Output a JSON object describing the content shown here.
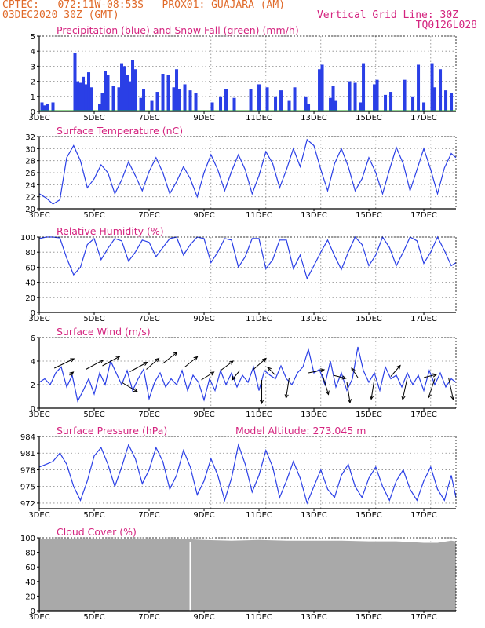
{
  "header": {
    "line1": "CPTEC:   072:11W-08:53S   PROX01: GUAJARA (AM)",
    "line2": "03DEC2020 30Z (GMT)",
    "grid_note": "Vertical Grid Line: 30Z",
    "code": "TQ0126L028"
  },
  "colors": {
    "header": "#e06a2a",
    "title": "#d4247f",
    "line": "#2a3fe6",
    "snow": "#1aa11a",
    "cloud": "#a9a9a9",
    "grid": "#888888"
  },
  "x_axis": {
    "day_start": 3,
    "day_end": 18.17,
    "tick_labels": [
      "3DEC",
      "5DEC",
      "7DEC",
      "9DEC",
      "11DEC",
      "13DEC",
      "15DEC",
      "17DEC"
    ],
    "tick_days": [
      3,
      5,
      7,
      9,
      11,
      13,
      15,
      17
    ],
    "vertical_grid_days": [
      9.25,
      11.25,
      13.25,
      15.25,
      17.25
    ]
  },
  "chart_data": [
    {
      "type": "bar",
      "title": "Precipitation (blue) and Snow Fall (green) (mm/h)",
      "ylim": [
        0,
        5
      ],
      "yticks": [
        0,
        1,
        2,
        3,
        4,
        5
      ],
      "series": [
        {
          "name": "Precipitation",
          "units": "mm/h",
          "x_days": [
            3.1,
            3.2,
            3.3,
            3.5,
            4.3,
            4.4,
            4.5,
            4.6,
            4.7,
            4.8,
            4.9,
            5.2,
            5.3,
            5.4,
            5.5,
            5.7,
            5.9,
            6.0,
            6.1,
            6.2,
            6.3,
            6.4,
            6.5,
            6.7,
            6.8,
            7.1,
            7.3,
            7.5,
            7.7,
            7.9,
            8.0,
            8.1,
            8.3,
            8.5,
            8.7,
            9.3,
            9.6,
            9.8,
            10.1,
            10.7,
            11.0,
            11.3,
            11.6,
            11.8,
            12.1,
            12.3,
            12.7,
            12.8,
            13.2,
            13.3,
            13.6,
            13.7,
            13.8,
            14.3,
            14.5,
            14.7,
            14.8,
            15.2,
            15.3,
            15.6,
            15.8,
            16.3,
            16.6,
            16.8,
            17.0,
            17.3,
            17.4,
            17.6,
            17.8,
            18.0
          ],
          "values": [
            0.6,
            0.4,
            0.5,
            0.6,
            3.9,
            2.0,
            1.9,
            2.3,
            1.8,
            2.6,
            1.6,
            0.5,
            1.2,
            2.7,
            2.4,
            1.7,
            1.6,
            3.2,
            3.0,
            2.4,
            2.0,
            3.4,
            2.8,
            0.9,
            1.5,
            0.7,
            1.3,
            2.5,
            2.4,
            1.6,
            2.8,
            1.5,
            1.8,
            1.4,
            1.2,
            0.6,
            1.0,
            1.5,
            0.9,
            1.5,
            1.8,
            1.6,
            1.0,
            1.4,
            0.7,
            1.6,
            1.0,
            0.5,
            2.8,
            3.1,
            0.9,
            1.7,
            0.7,
            2.0,
            1.9,
            0.6,
            3.2,
            1.8,
            2.1,
            1.1,
            1.3,
            2.1,
            1.0,
            3.1,
            0.6,
            3.2,
            1.6,
            2.8,
            1.4,
            1.2
          ]
        },
        {
          "name": "Snow Fall",
          "units": "mm/h",
          "x_days": [
            3.0,
            18.17
          ],
          "values": [
            0,
            0
          ]
        }
      ]
    },
    {
      "type": "line",
      "title": "Surface Temperature (nC)",
      "ylim": [
        20,
        32
      ],
      "yticks": [
        20,
        22,
        24,
        26,
        28,
        30,
        32
      ],
      "x_days": [
        3.0,
        3.25,
        3.5,
        3.75,
        4.0,
        4.25,
        4.5,
        4.75,
        5.0,
        5.25,
        5.5,
        5.75,
        6.0,
        6.25,
        6.5,
        6.75,
        7.0,
        7.25,
        7.5,
        7.75,
        8.0,
        8.25,
        8.5,
        8.75,
        9.0,
        9.25,
        9.5,
        9.75,
        10.0,
        10.25,
        10.5,
        10.75,
        11.0,
        11.25,
        11.5,
        11.75,
        12.0,
        12.25,
        12.5,
        12.75,
        13.0,
        13.25,
        13.5,
        13.75,
        14.0,
        14.25,
        14.5,
        14.75,
        15.0,
        15.25,
        15.5,
        15.75,
        16.0,
        16.25,
        16.5,
        16.75,
        17.0,
        17.25,
        17.5,
        17.75,
        18.0,
        18.17
      ],
      "values": [
        22.5,
        21.8,
        20.8,
        21.5,
        28.5,
        30.5,
        28.0,
        23.5,
        25.0,
        27.3,
        26.0,
        22.5,
        24.8,
        27.8,
        25.5,
        23.0,
        26.2,
        28.5,
        26.0,
        22.5,
        24.5,
        27.0,
        25.0,
        22.0,
        26.0,
        29.0,
        26.5,
        23.0,
        26.2,
        29.0,
        26.5,
        22.5,
        25.5,
        29.5,
        27.5,
        23.5,
        26.5,
        30.0,
        27.0,
        31.5,
        30.5,
        26.5,
        23.0,
        27.5,
        30.0,
        27.0,
        23.0,
        25.0,
        28.5,
        26.0,
        22.5,
        26.5,
        30.2,
        27.5,
        23.0,
        26.5,
        30.0,
        26.5,
        22.5,
        26.8,
        29.2,
        28.5
      ]
    },
    {
      "type": "line",
      "title": "Relative Humidity (%)",
      "ylim": [
        0,
        100
      ],
      "yticks": [
        0,
        20,
        40,
        60,
        80,
        100
      ],
      "x_days": [
        3.0,
        3.25,
        3.5,
        3.75,
        4.0,
        4.25,
        4.5,
        4.75,
        5.0,
        5.25,
        5.5,
        5.75,
        6.0,
        6.25,
        6.5,
        6.75,
        7.0,
        7.25,
        7.5,
        7.75,
        8.0,
        8.25,
        8.5,
        8.75,
        9.0,
        9.25,
        9.5,
        9.75,
        10.0,
        10.25,
        10.5,
        10.75,
        11.0,
        11.25,
        11.5,
        11.75,
        12.0,
        12.25,
        12.5,
        12.75,
        13.0,
        13.25,
        13.5,
        13.75,
        14.0,
        14.25,
        14.5,
        14.75,
        15.0,
        15.25,
        15.5,
        15.75,
        16.0,
        16.25,
        16.5,
        16.75,
        17.0,
        17.25,
        17.5,
        17.75,
        18.0,
        18.17
      ],
      "values": [
        98,
        100,
        100,
        99,
        72,
        50,
        60,
        90,
        98,
        70,
        85,
        98,
        95,
        68,
        80,
        96,
        93,
        74,
        86,
        98,
        100,
        76,
        90,
        100,
        98,
        66,
        80,
        98,
        96,
        60,
        74,
        98,
        98,
        58,
        70,
        96,
        96,
        58,
        76,
        45,
        62,
        80,
        96,
        75,
        57,
        80,
        100,
        90,
        62,
        76,
        100,
        86,
        62,
        80,
        100,
        95,
        65,
        80,
        100,
        82,
        62,
        66
      ]
    },
    {
      "type": "line",
      "title": "Surface Wind (m/s)",
      "ylim": [
        0,
        6
      ],
      "yticks": [
        0,
        2,
        4,
        6
      ],
      "x_days": [
        3.0,
        3.2,
        3.4,
        3.6,
        3.8,
        4.0,
        4.2,
        4.4,
        4.6,
        4.8,
        5.0,
        5.2,
        5.4,
        5.6,
        5.8,
        6.0,
        6.2,
        6.4,
        6.6,
        6.8,
        7.0,
        7.2,
        7.4,
        7.6,
        7.8,
        8.0,
        8.2,
        8.4,
        8.6,
        8.8,
        9.0,
        9.2,
        9.4,
        9.6,
        9.8,
        10.0,
        10.2,
        10.4,
        10.6,
        10.8,
        11.0,
        11.2,
        11.4,
        11.6,
        11.8,
        12.0,
        12.2,
        12.4,
        12.6,
        12.8,
        13.0,
        13.2,
        13.4,
        13.6,
        13.8,
        14.0,
        14.2,
        14.4,
        14.6,
        14.8,
        15.0,
        15.2,
        15.4,
        15.6,
        15.8,
        16.0,
        16.2,
        16.4,
        16.6,
        16.8,
        17.0,
        17.2,
        17.4,
        17.6,
        17.8,
        18.0,
        18.17
      ],
      "values": [
        2.2,
        2.5,
        2.0,
        3.0,
        3.5,
        1.8,
        2.8,
        0.6,
        1.5,
        2.5,
        1.2,
        3.0,
        2.0,
        4.0,
        3.0,
        2.0,
        3.2,
        1.5,
        2.5,
        3.3,
        0.8,
        2.2,
        3.0,
        1.8,
        2.5,
        2.0,
        3.2,
        1.5,
        2.8,
        2.2,
        0.7,
        2.5,
        1.5,
        3.2,
        2.0,
        3.0,
        1.8,
        2.8,
        2.2,
        3.5,
        1.5,
        3.2,
        2.8,
        2.5,
        3.6,
        2.5,
        2.0,
        3.0,
        3.5,
        5.0,
        3.0,
        3.3,
        2.0,
        4.0,
        1.8,
        3.0,
        1.5,
        2.5,
        5.2,
        3.2,
        2.2,
        3.0,
        1.5,
        3.5,
        2.5,
        2.8,
        1.8,
        3.0,
        2.0,
        2.8,
        1.5,
        3.2,
        2.0,
        3.0,
        1.8,
        2.5,
        2.2
      ]
    },
    {
      "type": "line",
      "title": "Surface Pressure (hPa)",
      "annotation": "Model Altitude: 273.045  m",
      "ylim": [
        971,
        984
      ],
      "yticks": [
        972,
        975,
        978,
        981,
        984
      ],
      "x_days": [
        3.0,
        3.25,
        3.5,
        3.75,
        4.0,
        4.25,
        4.5,
        4.75,
        5.0,
        5.25,
        5.5,
        5.75,
        6.0,
        6.25,
        6.5,
        6.75,
        7.0,
        7.25,
        7.5,
        7.75,
        8.0,
        8.25,
        8.5,
        8.75,
        9.0,
        9.25,
        9.5,
        9.75,
        10.0,
        10.25,
        10.5,
        10.75,
        11.0,
        11.25,
        11.5,
        11.75,
        12.0,
        12.25,
        12.5,
        12.75,
        13.0,
        13.25,
        13.5,
        13.75,
        14.0,
        14.25,
        14.5,
        14.75,
        15.0,
        15.25,
        15.5,
        15.75,
        16.0,
        16.25,
        16.5,
        16.75,
        17.0,
        17.25,
        17.5,
        17.75,
        18.0,
        18.17
      ],
      "values": [
        978.5,
        979,
        979.5,
        981,
        979,
        975,
        972.5,
        976,
        980.5,
        982,
        979,
        975,
        978.5,
        982.5,
        980,
        975.5,
        978,
        982,
        979.5,
        974.5,
        977,
        981.5,
        978.5,
        973.5,
        976,
        980,
        977,
        972.5,
        976.5,
        982.5,
        979,
        974,
        977,
        981.5,
        978.5,
        973,
        976,
        979.5,
        976.5,
        972,
        975,
        978,
        974.5,
        973,
        977,
        979,
        975,
        973,
        976.5,
        978.5,
        975,
        972.5,
        976,
        978,
        974.5,
        972.5,
        976,
        978.5,
        974.5,
        972.5,
        977,
        973
      ]
    },
    {
      "type": "area",
      "title": "Cloud Cover (%)",
      "ylim": [
        0,
        100
      ],
      "yticks": [
        0,
        20,
        40,
        60,
        80,
        100
      ],
      "x_days": [
        3.0,
        4.0,
        5.0,
        6.0,
        7.0,
        8.0,
        8.5,
        9.0,
        10.0,
        11.0,
        12.0,
        13.0,
        14.0,
        15.0,
        16.0,
        17.0,
        17.5,
        18.0,
        18.17
      ],
      "values": [
        98,
        99,
        99,
        98,
        99,
        98,
        98,
        97,
        96,
        97,
        96,
        96,
        96,
        95,
        95,
        93,
        93,
        96,
        95
      ],
      "gap_days": [
        8.5
      ]
    }
  ]
}
